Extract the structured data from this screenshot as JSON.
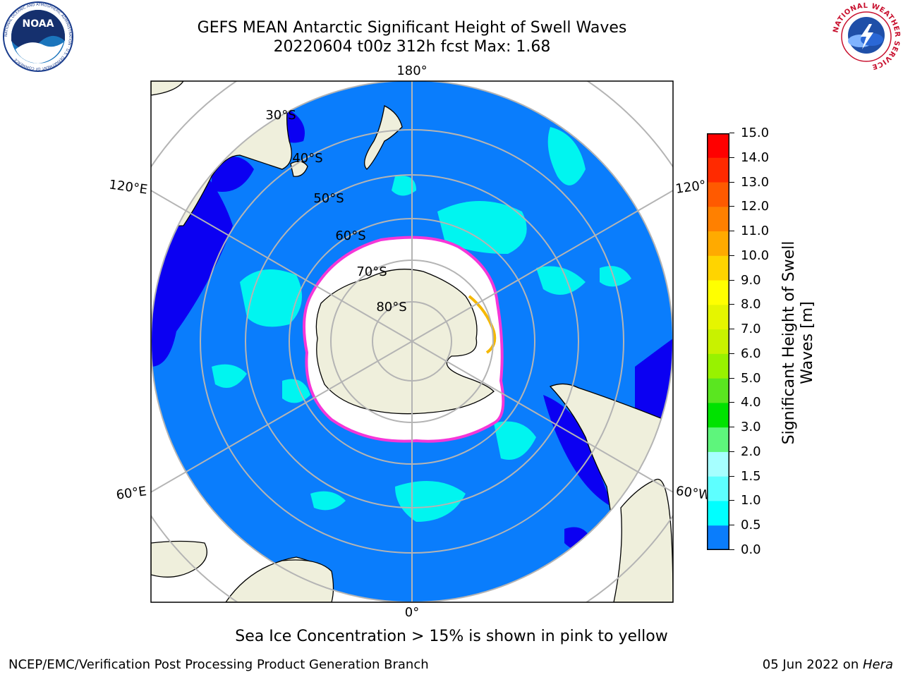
{
  "header": {
    "title_line1": "GEFS MEAN Antarctic Significant Height of Swell Waves",
    "title_line2": "20220604 t00z 312h fcst   Max: 1.68"
  },
  "logos": {
    "left": {
      "name": "noaa-logo",
      "text": "NOAA",
      "ring_text": "NATIONAL OCEANIC AND ATMOSPHERIC ADMINISTRATION · U.S. DEPARTMENT OF COMMERCE"
    },
    "right": {
      "name": "nws-logo",
      "ring_text": "NATIONAL WEATHER SERVICE"
    }
  },
  "map": {
    "projection": "south-polar-stereographic",
    "longitude_labels": [
      "180°",
      "120°E",
      "120°",
      "60°E",
      "60°W",
      "0°"
    ],
    "latitude_labels": [
      "30°S",
      "40°S",
      "50°S",
      "60°S",
      "70°S",
      "80°S"
    ],
    "colors": {
      "ocean_low": "#0a7dfc",
      "ocean_min": "#0b00f2",
      "ocean_mid": "#00f5f0",
      "land": "#efefdc",
      "ice_edge_pink": "#f536d8",
      "ice_edge_yellow": "#f5b800",
      "grid": "#b4b4b4"
    }
  },
  "colorbar": {
    "label": "Significant Height of Swell Waves [m]",
    "ticks": [
      "15.0",
      "14.0",
      "13.0",
      "12.0",
      "11.0",
      "10.0",
      "9.0",
      "8.0",
      "7.0",
      "6.0",
      "5.0",
      "4.0",
      "3.0",
      "2.0",
      "1.5",
      "1.0",
      "0.5",
      "0.0"
    ],
    "bin_colors_top_to_bottom": [
      "#ff0000",
      "#ff2a00",
      "#ff5a00",
      "#ff8000",
      "#ffaa00",
      "#ffd400",
      "#ffff00",
      "#e5f500",
      "#c8f200",
      "#98f200",
      "#5ae620",
      "#00e200",
      "#5ef57c",
      "#a6ffff",
      "#5dffff",
      "#00ffff",
      "#0a7dfc",
      "#0000ff"
    ]
  },
  "caption": "Sea Ice Concentration > 15% is shown in pink to yellow",
  "footer": {
    "left": "NCEP/EMC/Verification Post Processing Product Generation Branch",
    "right_prefix": "05 Jun 2022 on ",
    "right_host": "Hera"
  }
}
